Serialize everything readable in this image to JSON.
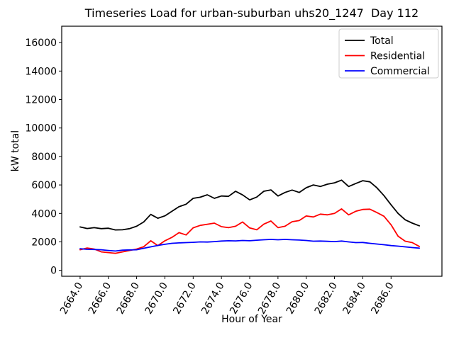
{
  "chart_data": {
    "type": "line",
    "title": "Timeseries Load for urban-suburban uhs20_1247  Day 112",
    "xlabel": "Hour of Year",
    "ylabel": "kW total",
    "grid": false,
    "legend_position": "upper right",
    "xlim": [
      2662.7,
      2689.6
    ],
    "ylim": [
      -413,
      17150
    ],
    "xticks": [
      2664,
      2666,
      2668,
      2670,
      2672,
      2674,
      2676,
      2678,
      2680,
      2682,
      2684,
      2686
    ],
    "xtick_labels": [
      "2664.0",
      "2666.0",
      "2668.0",
      "2670.0",
      "2672.0",
      "2674.0",
      "2676.0",
      "2678.0",
      "2680.0",
      "2682.0",
      "2684.0",
      "2686.0"
    ],
    "yticks": [
      0,
      2000,
      4000,
      6000,
      8000,
      10000,
      12000,
      14000,
      16000
    ],
    "ytick_labels": [
      "0",
      "2000",
      "4000",
      "6000",
      "8000",
      "10000",
      "12000",
      "14000",
      "16000"
    ],
    "x": [
      2664.0,
      2664.5,
      2665.0,
      2665.5,
      2666.0,
      2666.5,
      2667.0,
      2667.5,
      2668.0,
      2668.5,
      2669.0,
      2669.5,
      2670.0,
      2670.5,
      2671.0,
      2671.5,
      2672.0,
      2672.5,
      2673.0,
      2673.5,
      2674.0,
      2674.5,
      2675.0,
      2675.5,
      2676.0,
      2676.5,
      2677.0,
      2677.5,
      2678.0,
      2678.5,
      2679.0,
      2679.5,
      2680.0,
      2680.5,
      2681.0,
      2681.5,
      2682.0,
      2682.5,
      2683.0,
      2683.5,
      2684.0,
      2684.5,
      2685.0,
      2685.5,
      2686.0,
      2686.5,
      2687.0,
      2687.5,
      2688.0
    ],
    "series": [
      {
        "name": "Total",
        "color": "#000000",
        "values": [
          3050,
          2940,
          3000,
          2930,
          2960,
          2840,
          2850,
          2930,
          3100,
          3400,
          3930,
          3660,
          3830,
          4150,
          4475,
          4645,
          5060,
          5140,
          5310,
          5060,
          5225,
          5200,
          5555,
          5300,
          4950,
          5150,
          5555,
          5650,
          5225,
          5475,
          5640,
          5475,
          5805,
          6000,
          5890,
          6055,
          6150,
          6340,
          5890,
          6100,
          6300,
          6220,
          5800,
          5250,
          4600,
          4000,
          3550,
          3320,
          3130
        ]
      },
      {
        "name": "Residential",
        "color": "#ff0000",
        "values": [
          1450,
          1570,
          1500,
          1300,
          1250,
          1200,
          1300,
          1400,
          1500,
          1660,
          2080,
          1740,
          2080,
          2320,
          2650,
          2490,
          2990,
          3160,
          3240,
          3320,
          3070,
          3000,
          3100,
          3400,
          2980,
          2850,
          3250,
          3470,
          3000,
          3100,
          3420,
          3500,
          3820,
          3750,
          3950,
          3900,
          4000,
          4320,
          3900,
          4150,
          4280,
          4300,
          4060,
          3800,
          3200,
          2400,
          2050,
          1950,
          1680
        ]
      },
      {
        "name": "Commercial",
        "color": "#0000ff",
        "values": [
          1520,
          1480,
          1470,
          1450,
          1400,
          1360,
          1420,
          1440,
          1450,
          1550,
          1650,
          1750,
          1830,
          1900,
          1930,
          1950,
          1970,
          2000,
          1990,
          2020,
          2060,
          2080,
          2070,
          2100,
          2080,
          2120,
          2150,
          2175,
          2150,
          2175,
          2150,
          2130,
          2100,
          2050,
          2060,
          2040,
          2020,
          2060,
          2000,
          1950,
          1960,
          1900,
          1850,
          1800,
          1740,
          1700,
          1650,
          1600,
          1560
        ]
      }
    ]
  }
}
